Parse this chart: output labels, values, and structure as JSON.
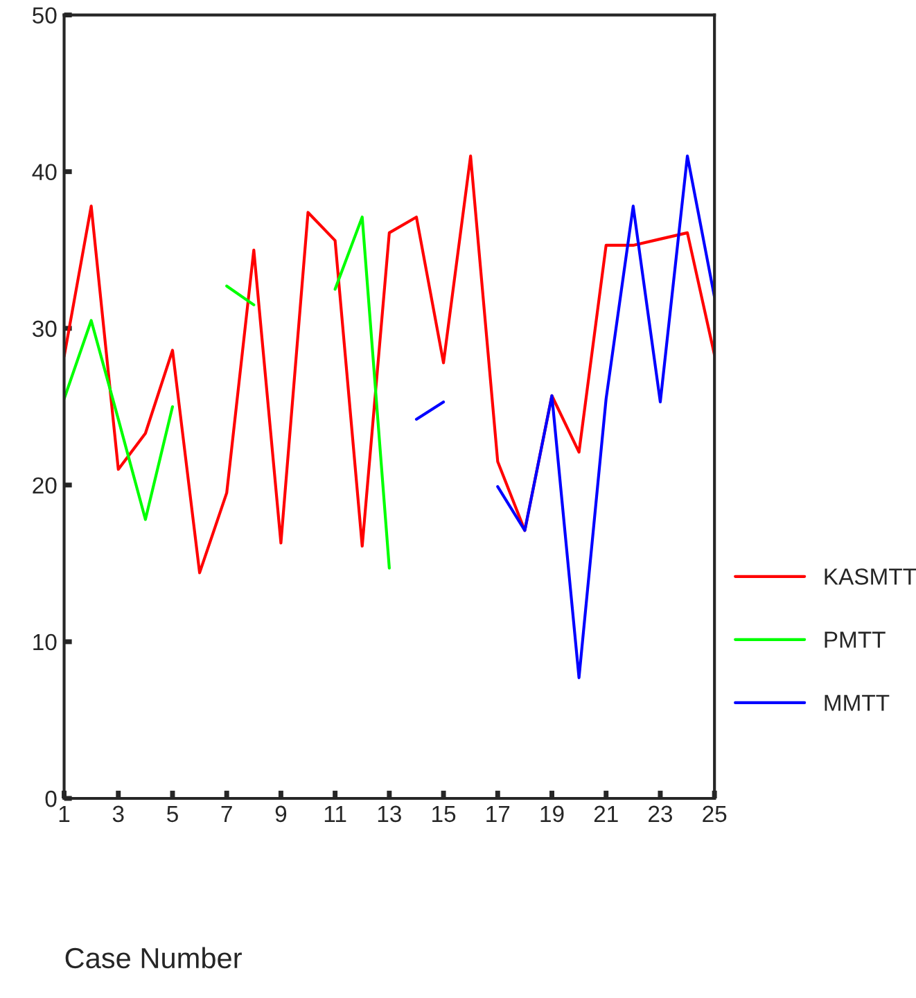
{
  "chart_data": {
    "type": "line",
    "xlabel": "Case Number",
    "x": [
      1,
      2,
      3,
      4,
      5,
      6,
      7,
      8,
      9,
      10,
      11,
      12,
      13,
      14,
      15,
      16,
      17,
      18,
      19,
      20,
      21,
      22,
      23,
      24,
      25
    ],
    "series": [
      {
        "name": "KASMTT",
        "color": "#ff0000",
        "values": [
          28.2,
          37.8,
          21.0,
          23.3,
          28.6,
          14.4,
          19.5,
          35.0,
          16.3,
          37.4,
          35.6,
          16.1,
          36.1,
          37.1,
          27.8,
          41.0,
          21.5,
          17.1,
          25.7,
          22.1,
          35.3,
          35.3,
          35.7,
          36.1,
          28.3
        ]
      },
      {
        "name": "PMTT",
        "color": "#00ff00",
        "values": [
          25.5,
          30.5,
          24.2,
          17.8,
          25.0,
          null,
          32.7,
          31.5,
          null,
          null,
          32.5,
          37.1,
          14.7,
          null,
          null,
          null,
          null,
          null,
          null,
          null,
          null,
          null,
          null,
          null,
          null
        ]
      },
      {
        "name": "MMTT",
        "color": "#0000ff",
        "values": [
          null,
          null,
          null,
          null,
          null,
          null,
          null,
          null,
          null,
          null,
          null,
          null,
          null,
          24.2,
          25.3,
          null,
          19.9,
          17.1,
          25.7,
          7.7,
          25.5,
          37.8,
          25.3,
          41.0,
          32.0
        ]
      }
    ],
    "xlim": [
      1,
      25
    ],
    "xticks": [
      1,
      3,
      5,
      7,
      9,
      11,
      13,
      15,
      17,
      19,
      21,
      23,
      25
    ],
    "ylim": [
      0,
      50
    ],
    "yticks": [
      0,
      10,
      20,
      30,
      40,
      50
    ],
    "grid": false,
    "legend": "right",
    "marker": "none",
    "line_style": "solid"
  }
}
